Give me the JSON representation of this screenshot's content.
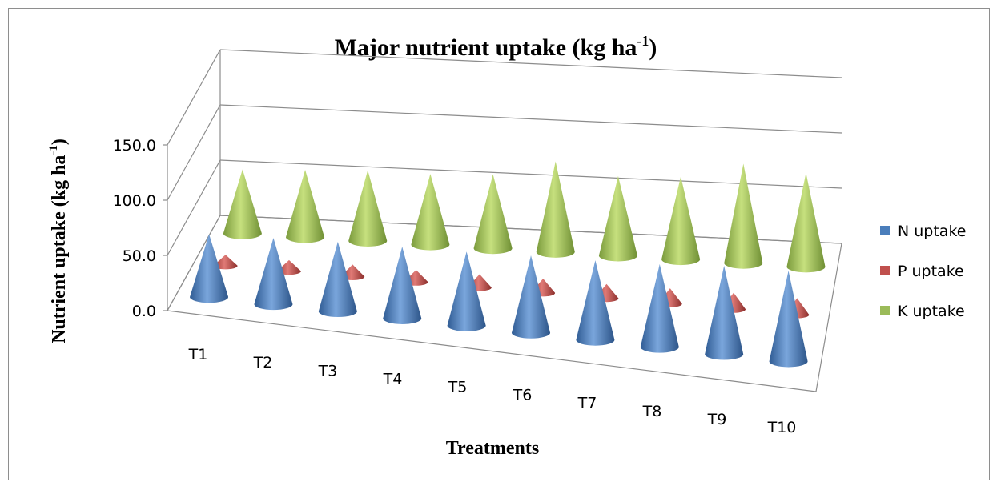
{
  "chart_data": {
    "type": "bar",
    "title": "Major nutrient uptake (kg ha",
    "title_superscript": "-1",
    "title_close": ")",
    "ylabel": "Nutrient uptake (kg ha",
    "ylabel_superscript": "-1",
    "ylabel_close": ")",
    "xlabel": "Treatments",
    "categories": [
      "T1",
      "T2",
      "T3",
      "T4",
      "T5",
      "T6",
      "T7",
      "T8",
      "T9",
      "T10"
    ],
    "ylim": [
      0,
      150
    ],
    "y_ticks": [
      "0.0",
      "50.0",
      "100.0",
      "150.0"
    ],
    "y_tick_values": [
      0,
      50,
      100,
      150
    ],
    "series": [
      {
        "name": "N uptake",
        "color": "#4a7ebb",
        "values": [
          57,
          60,
          63,
          65,
          67,
          70,
          72,
          75,
          80,
          82
        ]
      },
      {
        "name": "P uptake",
        "color": "#c0504d",
        "values": [
          10,
          10,
          11,
          11,
          12,
          13,
          13,
          14,
          15,
          15
        ]
      },
      {
        "name": "K uptake",
        "color": "#9bbb59",
        "values": [
          58,
          61,
          64,
          64,
          67,
          82,
          72,
          75,
          90,
          85
        ]
      }
    ],
    "legend_position": "right",
    "grid": true,
    "projection": "3d-cone"
  }
}
